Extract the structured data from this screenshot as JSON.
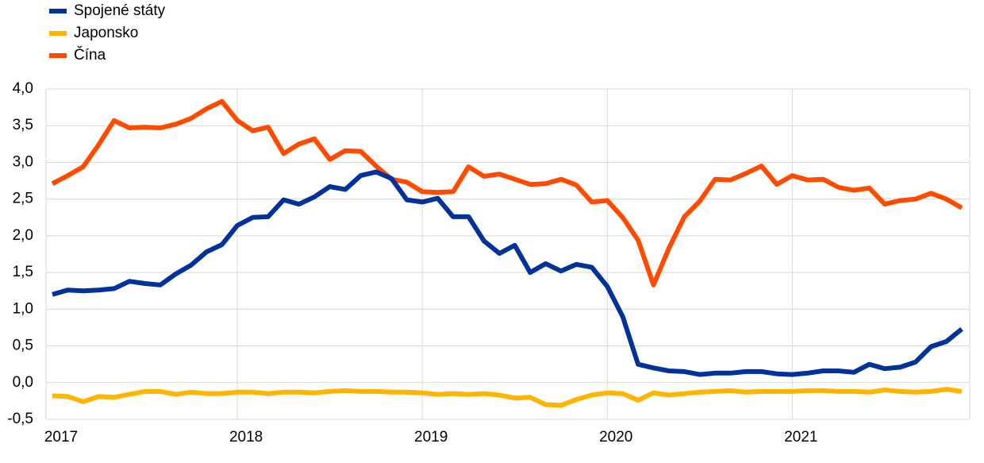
{
  "chart_data": {
    "type": "line",
    "categories": [
      "2017",
      null,
      null,
      null,
      null,
      null,
      null,
      null,
      null,
      null,
      null,
      null,
      "2018",
      null,
      null,
      null,
      null,
      null,
      null,
      null,
      null,
      null,
      null,
      null,
      "2019",
      null,
      null,
      null,
      null,
      null,
      null,
      null,
      null,
      null,
      null,
      null,
      "2020",
      null,
      null,
      null,
      null,
      null,
      null,
      null,
      null,
      null,
      null,
      null,
      "2021",
      null,
      null,
      null,
      null,
      null,
      null,
      null,
      null,
      null,
      null,
      null
    ],
    "series": [
      {
        "name": "Spojené státy",
        "color": "#003299",
        "values": [
          1.2,
          1.26,
          1.25,
          1.26,
          1.28,
          1.38,
          1.35,
          1.33,
          1.48,
          1.6,
          1.78,
          1.88,
          2.14,
          2.25,
          2.26,
          2.49,
          2.43,
          2.53,
          2.67,
          2.63,
          2.82,
          2.87,
          2.78,
          2.49,
          2.46,
          2.51,
          2.26,
          2.26,
          1.93,
          1.76,
          1.87,
          1.5,
          1.62,
          1.52,
          1.61,
          1.57,
          1.31,
          0.9,
          0.25,
          0.2,
          0.16,
          0.15,
          0.11,
          0.13,
          0.13,
          0.15,
          0.15,
          0.12,
          0.11,
          0.13,
          0.16,
          0.16,
          0.14,
          0.25,
          0.19,
          0.21,
          0.28,
          0.49,
          0.56,
          0.73
        ]
      },
      {
        "name": "Japonsko",
        "color": "#ffb400",
        "values": [
          -0.18,
          -0.19,
          -0.26,
          -0.19,
          -0.2,
          -0.16,
          -0.12,
          -0.12,
          -0.16,
          -0.13,
          -0.15,
          -0.15,
          -0.13,
          -0.13,
          -0.15,
          -0.13,
          -0.13,
          -0.14,
          -0.12,
          -0.11,
          -0.12,
          -0.12,
          -0.13,
          -0.13,
          -0.14,
          -0.16,
          -0.15,
          -0.16,
          -0.15,
          -0.17,
          -0.21,
          -0.2,
          -0.3,
          -0.31,
          -0.23,
          -0.17,
          -0.14,
          -0.15,
          -0.24,
          -0.14,
          -0.17,
          -0.15,
          -0.13,
          -0.12,
          -0.11,
          -0.13,
          -0.12,
          -0.12,
          -0.12,
          -0.11,
          -0.11,
          -0.12,
          -0.12,
          -0.13,
          -0.1,
          -0.12,
          -0.13,
          -0.12,
          -0.09,
          -0.12
        ]
      },
      {
        "name": "Čína",
        "color": "#ff4b00",
        "values": [
          2.71,
          2.82,
          2.94,
          3.24,
          3.57,
          3.47,
          3.48,
          3.47,
          3.52,
          3.6,
          3.73,
          3.83,
          3.57,
          3.43,
          3.48,
          3.12,
          3.25,
          3.32,
          3.04,
          3.16,
          3.15,
          2.95,
          2.77,
          2.73,
          2.6,
          2.59,
          2.6,
          2.94,
          2.81,
          2.84,
          2.77,
          2.7,
          2.71,
          2.77,
          2.69,
          2.46,
          2.48,
          2.25,
          1.94,
          1.33,
          1.83,
          2.26,
          2.47,
          2.77,
          2.76,
          2.85,
          2.95,
          2.7,
          2.82,
          2.76,
          2.77,
          2.66,
          2.62,
          2.65,
          2.43,
          2.48,
          2.5,
          2.58,
          2.5,
          2.38
        ]
      }
    ],
    "ylim": [
      -0.5,
      4.0
    ],
    "yticks": [
      {
        "value": -0.5,
        "label": "-0,5"
      },
      {
        "value": 0,
        "label": "0,0"
      },
      {
        "value": 0.5,
        "label": "0,5"
      },
      {
        "value": 1,
        "label": "1,0"
      },
      {
        "value": 1.5,
        "label": "1,5"
      },
      {
        "value": 2,
        "label": "2,0"
      },
      {
        "value": 2.5,
        "label": "2,5"
      },
      {
        "value": 3,
        "label": "3,0"
      },
      {
        "value": 3.5,
        "label": "3,5"
      },
      {
        "value": 4,
        "label": "4,0"
      }
    ],
    "grid": true,
    "legend": "top-left"
  }
}
